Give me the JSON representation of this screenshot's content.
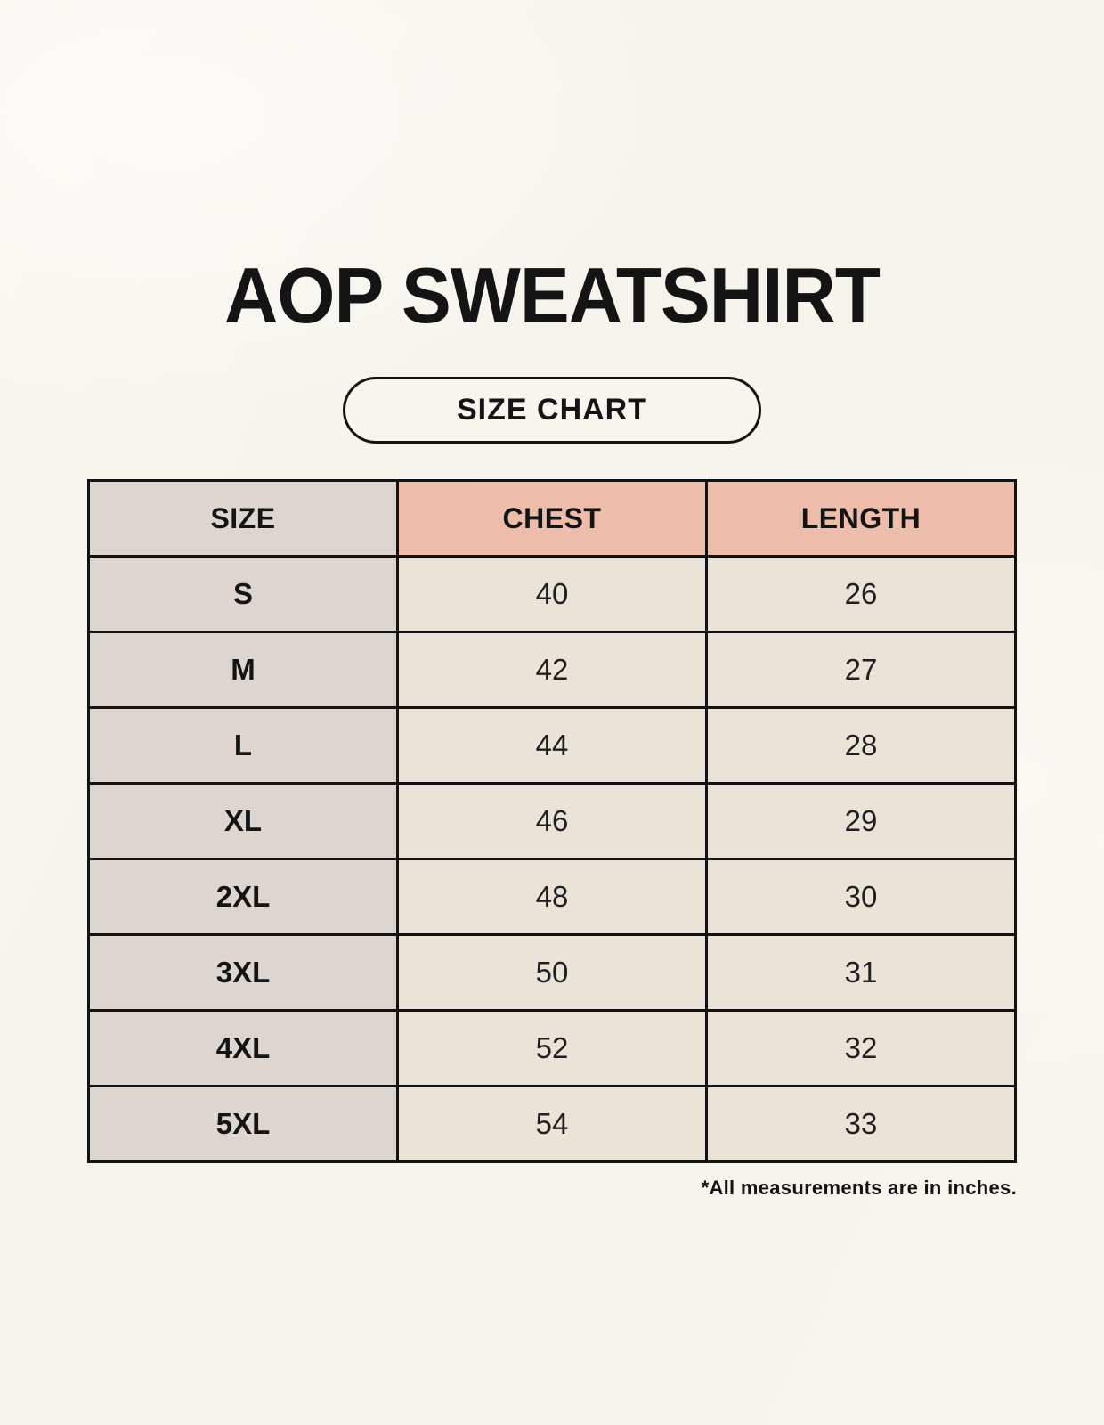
{
  "title": "AOP SWEATSHIRT",
  "badge": {
    "label": "SIZE CHART"
  },
  "footnote": "*All measurements are in inches.",
  "colors": {
    "background": "#f7f4ed",
    "size_column_bg": "#ddd6d0",
    "accent_header_bg": "#eebcab",
    "data_cell_bg": "#e9e3d8",
    "border": "#121212",
    "text": "#141414"
  },
  "chart_data": {
    "type": "table",
    "title": "AOP SWEATSHIRT",
    "subtitle": "SIZE CHART",
    "units": "inches",
    "columns": [
      "SIZE",
      "CHEST",
      "LENGTH"
    ],
    "rows": [
      {
        "size": "S",
        "chest": "40",
        "length": "26"
      },
      {
        "size": "M",
        "chest": "42",
        "length": "27"
      },
      {
        "size": "L",
        "chest": "44",
        "length": "28"
      },
      {
        "size": "XL",
        "chest": "46",
        "length": "29"
      },
      {
        "size": "2XL",
        "chest": "48",
        "length": "30"
      },
      {
        "size": "3XL",
        "chest": "50",
        "length": "31"
      },
      {
        "size": "4XL",
        "chest": "52",
        "length": "32"
      },
      {
        "size": "5XL",
        "chest": "54",
        "length": "33"
      }
    ]
  }
}
